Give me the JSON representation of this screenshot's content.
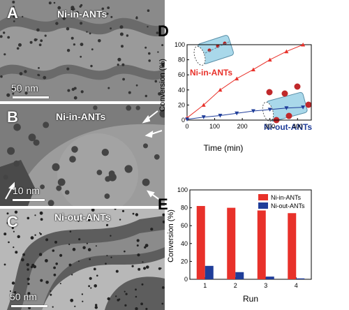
{
  "panels": [
    {
      "letter": "A",
      "title": "Ni-in-ANTs",
      "scale": "50 nm"
    },
    {
      "letter": "B",
      "title": "Ni-in-ANTs",
      "scale": "10 nm"
    },
    {
      "letter": "C",
      "title": "Ni-out-ANTs",
      "scale": "50 nm"
    }
  ],
  "colors": {
    "red": "#e8312a",
    "blue": "#1f3d99",
    "tube": "#a9d8ea"
  },
  "chart_data": [
    {
      "id": "D",
      "type": "line",
      "xlabel": "Time (min)",
      "ylabel": "Conversion (%)",
      "xlim": [
        0,
        450
      ],
      "ylim": [
        0,
        100
      ],
      "xticks": [
        0,
        100,
        200,
        300,
        400
      ],
      "yticks": [
        0,
        20,
        40,
        60,
        80,
        100
      ],
      "series": [
        {
          "name": "Ni-in-ANTs",
          "color": "#e8312a",
          "marker": "triangle-up",
          "x": [
            0,
            60,
            120,
            180,
            240,
            300,
            360,
            420
          ],
          "y": [
            3,
            20,
            40,
            55,
            67,
            80,
            91,
            100
          ]
        },
        {
          "name": "Ni-out-ANTs",
          "color": "#1f3d99",
          "marker": "triangle-down",
          "x": [
            0,
            60,
            120,
            180,
            240,
            300,
            360,
            420
          ],
          "y": [
            1,
            4,
            6,
            9,
            12,
            14,
            16,
            17
          ]
        }
      ]
    },
    {
      "id": "E",
      "type": "bar",
      "xlabel": "Run",
      "ylabel": "Conversion (%)",
      "categories": [
        "1",
        "2",
        "3",
        "4"
      ],
      "ylim": [
        0,
        100
      ],
      "yticks": [
        0,
        20,
        40,
        60,
        80,
        100
      ],
      "legend": "top-right",
      "series": [
        {
          "name": "Ni-in-ANTs",
          "color": "#e8312a",
          "values": [
            82,
            80,
            77,
            74
          ]
        },
        {
          "name": "Ni-out-ANTs",
          "color": "#1f3d99",
          "values": [
            15,
            8,
            3,
            1
          ]
        }
      ]
    }
  ]
}
